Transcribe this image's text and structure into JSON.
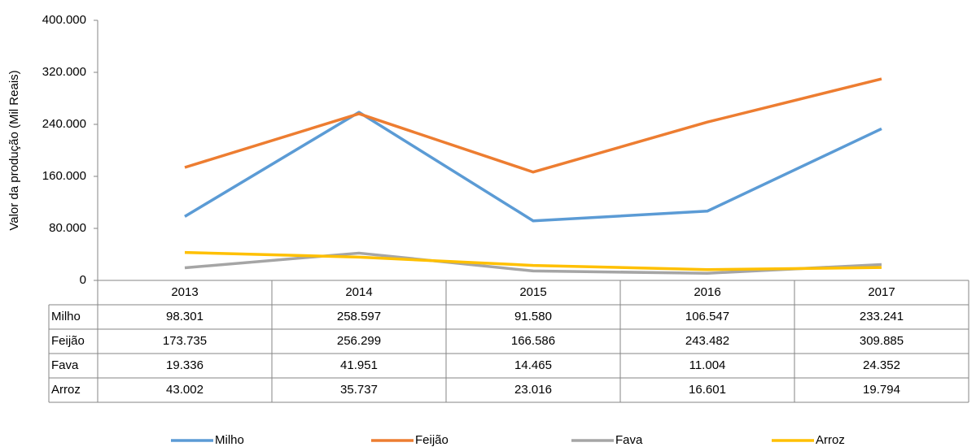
{
  "chart_data": {
    "type": "line",
    "y_label": "Valor da produção (Mil Reais)",
    "categories": [
      "2013",
      "2014",
      "2015",
      "2016",
      "2017"
    ],
    "series": [
      {
        "name": "Milho",
        "color": "#5b9bd5",
        "values": [
          98301,
          258597,
          91580,
          106547,
          233241
        ],
        "value_labels": [
          "98.301",
          "258.597",
          "91.580",
          "106.547",
          "233.241"
        ]
      },
      {
        "name": "Feijão",
        "color": "#ed7d31",
        "values": [
          173735,
          256299,
          166586,
          243482,
          309885
        ],
        "value_labels": [
          "173.735",
          "256.299",
          "166.586",
          "243.482",
          "309.885"
        ]
      },
      {
        "name": "Fava",
        "color": "#a5a5a5",
        "values": [
          19336,
          41951,
          14465,
          11004,
          24352
        ],
        "value_labels": [
          "19.336",
          "41.951",
          "14.465",
          "11.004",
          "24.352"
        ]
      },
      {
        "name": "Arroz",
        "color": "#ffc000",
        "values": [
          43002,
          35737,
          23016,
          16601,
          19794
        ],
        "value_labels": [
          "43.002",
          "35.737",
          "23.016",
          "16.601",
          "19.794"
        ]
      }
    ],
    "ylim": [
      0,
      400000
    ],
    "yticks": [
      0,
      {
        "value": 80000,
        "label": "80.000"
      },
      {
        "value": 160000,
        "label": "160.000"
      },
      {
        "value": 240000,
        "label": "240.000"
      },
      {
        "value": 320000,
        "label": "320.000"
      },
      {
        "value": 400000,
        "label": "400.000"
      }
    ],
    "grid": false,
    "legend": "bottom"
  }
}
